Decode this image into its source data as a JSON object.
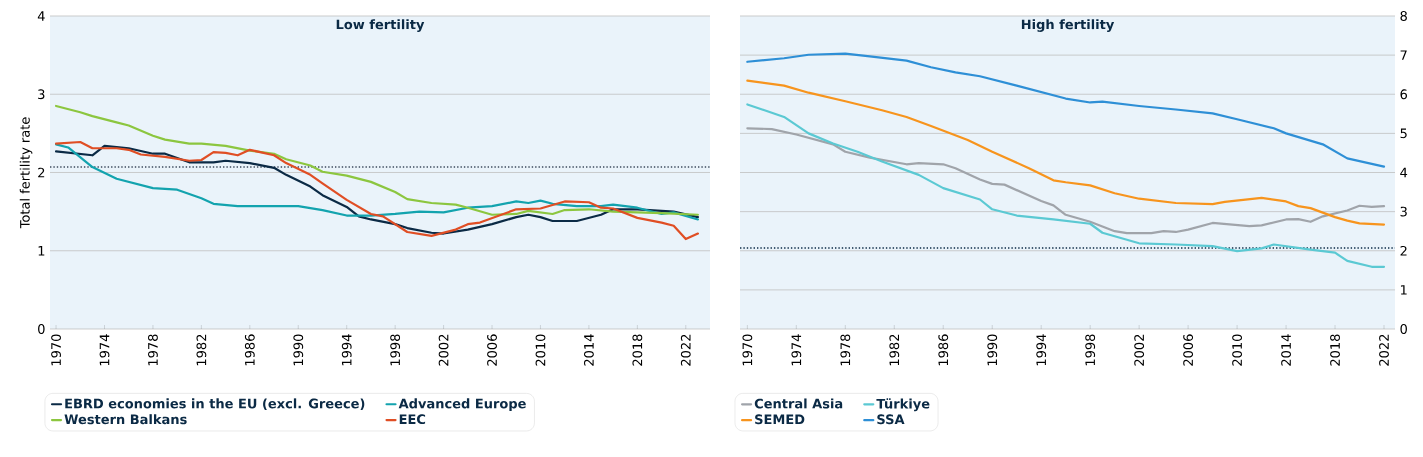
{
  "chart_data": [
    {
      "type": "line",
      "title": "Low fertility",
      "ylabel": "Total fertility rate",
      "xlim": [
        1969.5,
        2024
      ],
      "ylim": [
        0,
        4
      ],
      "xticks": [
        1970,
        1974,
        1978,
        1982,
        1986,
        1990,
        1994,
        1998,
        2002,
        2006,
        2010,
        2014,
        2018,
        2022
      ],
      "yticks": [
        0,
        1,
        2,
        3,
        4
      ],
      "grid": "y",
      "legend": "bottom",
      "line_style": "solid",
      "ref_lines": [
        {
          "axis": "y",
          "value": 2.07,
          "color": "#3c4a5c",
          "line_style": "dotted"
        }
      ],
      "series": [
        {
          "name": "EBRD economies in the EU (excl. Greece)",
          "color": "#0b2a45",
          "x": [
            1970,
            1973,
            1974,
            1976,
            1978,
            1979,
            1981,
            1983,
            1984,
            1986,
            1988,
            1989,
            1991,
            1992,
            1994,
            1995,
            1996,
            1998,
            1999,
            2001,
            2002,
            2004,
            2006,
            2008,
            2009,
            2010,
            2011,
            2013,
            2014,
            2015,
            2016,
            2018,
            2020,
            2021,
            2023
          ],
          "values": [
            2.27,
            2.22,
            2.34,
            2.31,
            2.24,
            2.24,
            2.13,
            2.13,
            2.15,
            2.12,
            2.06,
            1.97,
            1.82,
            1.71,
            1.56,
            1.44,
            1.4,
            1.34,
            1.29,
            1.23,
            1.22,
            1.27,
            1.34,
            1.43,
            1.46,
            1.43,
            1.38,
            1.38,
            1.42,
            1.46,
            1.53,
            1.53,
            1.51,
            1.5,
            1.43
          ]
        },
        {
          "name": "Advanced Europe",
          "color": "#13a3ae",
          "x": [
            1970,
            1971,
            1973,
            1975,
            1978,
            1980,
            1982,
            1983,
            1985,
            1988,
            1990,
            1992,
            1994,
            1996,
            1998,
            2000,
            2002,
            2004,
            2006,
            2008,
            2009,
            2010,
            2011,
            2013,
            2015,
            2016,
            2018,
            2020,
            2021,
            2023
          ],
          "values": [
            2.36,
            2.32,
            2.07,
            1.92,
            1.8,
            1.78,
            1.67,
            1.6,
            1.57,
            1.57,
            1.57,
            1.52,
            1.45,
            1.45,
            1.47,
            1.5,
            1.49,
            1.55,
            1.57,
            1.63,
            1.61,
            1.64,
            1.6,
            1.57,
            1.57,
            1.59,
            1.55,
            1.47,
            1.49,
            1.4
          ]
        },
        {
          "name": "Western Balkans",
          "color": "#8cc63f",
          "x": [
            1970,
            1972,
            1973,
            1975,
            1976,
            1978,
            1979,
            1981,
            1982,
            1984,
            1986,
            1988,
            1989,
            1991,
            1992,
            1994,
            1996,
            1998,
            1999,
            2001,
            2003,
            2004,
            2006,
            2008,
            2009,
            2011,
            2012,
            2014,
            2016,
            2020,
            2023
          ],
          "values": [
            2.85,
            2.77,
            2.72,
            2.64,
            2.6,
            2.47,
            2.42,
            2.37,
            2.37,
            2.34,
            2.28,
            2.24,
            2.17,
            2.09,
            2.01,
            1.96,
            1.88,
            1.75,
            1.66,
            1.61,
            1.59,
            1.55,
            1.46,
            1.47,
            1.51,
            1.47,
            1.52,
            1.53,
            1.5,
            1.48,
            1.46
          ]
        },
        {
          "name": "EEC",
          "color": "#e04e24",
          "x": [
            1970,
            1972,
            1973,
            1975,
            1976,
            1977,
            1979,
            1981,
            1982,
            1983,
            1984,
            1985,
            1986,
            1988,
            1989,
            1991,
            1992,
            1994,
            1996,
            1997,
            1999,
            2001,
            2003,
            2004,
            2005,
            2008,
            2010,
            2012,
            2014,
            2015,
            2016,
            2018,
            2020,
            2021,
            2022,
            2023
          ],
          "values": [
            2.37,
            2.39,
            2.31,
            2.31,
            2.29,
            2.23,
            2.2,
            2.15,
            2.16,
            2.26,
            2.25,
            2.22,
            2.29,
            2.22,
            2.12,
            1.97,
            1.86,
            1.65,
            1.47,
            1.44,
            1.24,
            1.19,
            1.27,
            1.34,
            1.36,
            1.53,
            1.54,
            1.63,
            1.62,
            1.55,
            1.54,
            1.42,
            1.36,
            1.32,
            1.15,
            1.22
          ]
        }
      ]
    },
    {
      "type": "line",
      "title": "High fertility",
      "xlim": [
        1969.4,
        2022.9
      ],
      "ylim": [
        0,
        8
      ],
      "xticks": [
        1970,
        1974,
        1978,
        1982,
        1986,
        1990,
        1994,
        1998,
        2002,
        2006,
        2010,
        2014,
        2018,
        2022
      ],
      "yticks": [
        0,
        1,
        2,
        3,
        4,
        5,
        6,
        7,
        8
      ],
      "grid": "y",
      "legend": "bottom",
      "line_style": "solid",
      "ref_lines": [
        {
          "axis": "y",
          "value": 2.07,
          "color": "#0b2a45",
          "line_style": "dotted"
        }
      ],
      "series": [
        {
          "name": "Central Asia",
          "color": "#a0a4aa",
          "x": [
            1970,
            1972,
            1974,
            1977,
            1978,
            1980,
            1983,
            1984,
            1986,
            1987,
            1989,
            1990,
            1991,
            1994,
            1995,
            1996,
            1998,
            2000,
            2001,
            2003,
            2004,
            2005,
            2006,
            2008,
            2011,
            2012,
            2014,
            2015,
            2016,
            2017,
            2019,
            2020,
            2021,
            2022
          ],
          "values": [
            5.13,
            5.11,
            4.97,
            4.72,
            4.53,
            4.38,
            4.21,
            4.24,
            4.21,
            4.11,
            3.82,
            3.71,
            3.69,
            3.27,
            3.16,
            2.92,
            2.74,
            2.5,
            2.45,
            2.45,
            2.5,
            2.48,
            2.54,
            2.71,
            2.63,
            2.65,
            2.8,
            2.81,
            2.74,
            2.88,
            3.03,
            3.15,
            3.12,
            3.14
          ]
        },
        {
          "name": "Türkiye",
          "color": "#5bc9d3",
          "x": [
            1970,
            1973,
            1975,
            1977,
            1979,
            1981,
            1984,
            1986,
            1989,
            1990,
            1992,
            1995,
            1998,
            1999,
            2002,
            2005,
            2008,
            2010,
            2012,
            2013,
            2016,
            2018,
            2019,
            2021,
            2022
          ],
          "values": [
            5.74,
            5.42,
            5.0,
            4.74,
            4.53,
            4.28,
            3.94,
            3.6,
            3.31,
            3.06,
            2.9,
            2.8,
            2.69,
            2.46,
            2.19,
            2.16,
            2.12,
            1.99,
            2.06,
            2.16,
            2.03,
            1.95,
            1.74,
            1.59,
            1.59
          ]
        },
        {
          "name": "SEMED",
          "color": "#f7941d",
          "x": [
            1970,
            1973,
            1975,
            1978,
            1981,
            1983,
            1985,
            1988,
            1990,
            1993,
            1995,
            1996,
            1998,
            2000,
            2002,
            2005,
            2008,
            2009,
            2012,
            2014,
            2015,
            2016,
            2018,
            2019,
            2020,
            2022
          ],
          "values": [
            6.35,
            6.22,
            6.04,
            5.82,
            5.59,
            5.42,
            5.19,
            4.83,
            4.53,
            4.11,
            3.8,
            3.75,
            3.67,
            3.47,
            3.33,
            3.22,
            3.19,
            3.25,
            3.35,
            3.26,
            3.14,
            3.09,
            2.86,
            2.77,
            2.7,
            2.67
          ]
        },
        {
          "name": "SSA",
          "color": "#2e8fd6",
          "x": [
            1970,
            1973,
            1975,
            1978,
            1980,
            1983,
            1985,
            1987,
            1989,
            1992,
            1996,
            1998,
            1999,
            2002,
            2005,
            2008,
            2010,
            2013,
            2014,
            2017,
            2019,
            2022
          ],
          "values": [
            6.83,
            6.92,
            7.01,
            7.04,
            6.97,
            6.86,
            6.69,
            6.56,
            6.46,
            6.22,
            5.89,
            5.79,
            5.81,
            5.7,
            5.61,
            5.51,
            5.36,
            5.13,
            5.0,
            4.72,
            4.36,
            4.15
          ]
        }
      ]
    }
  ]
}
